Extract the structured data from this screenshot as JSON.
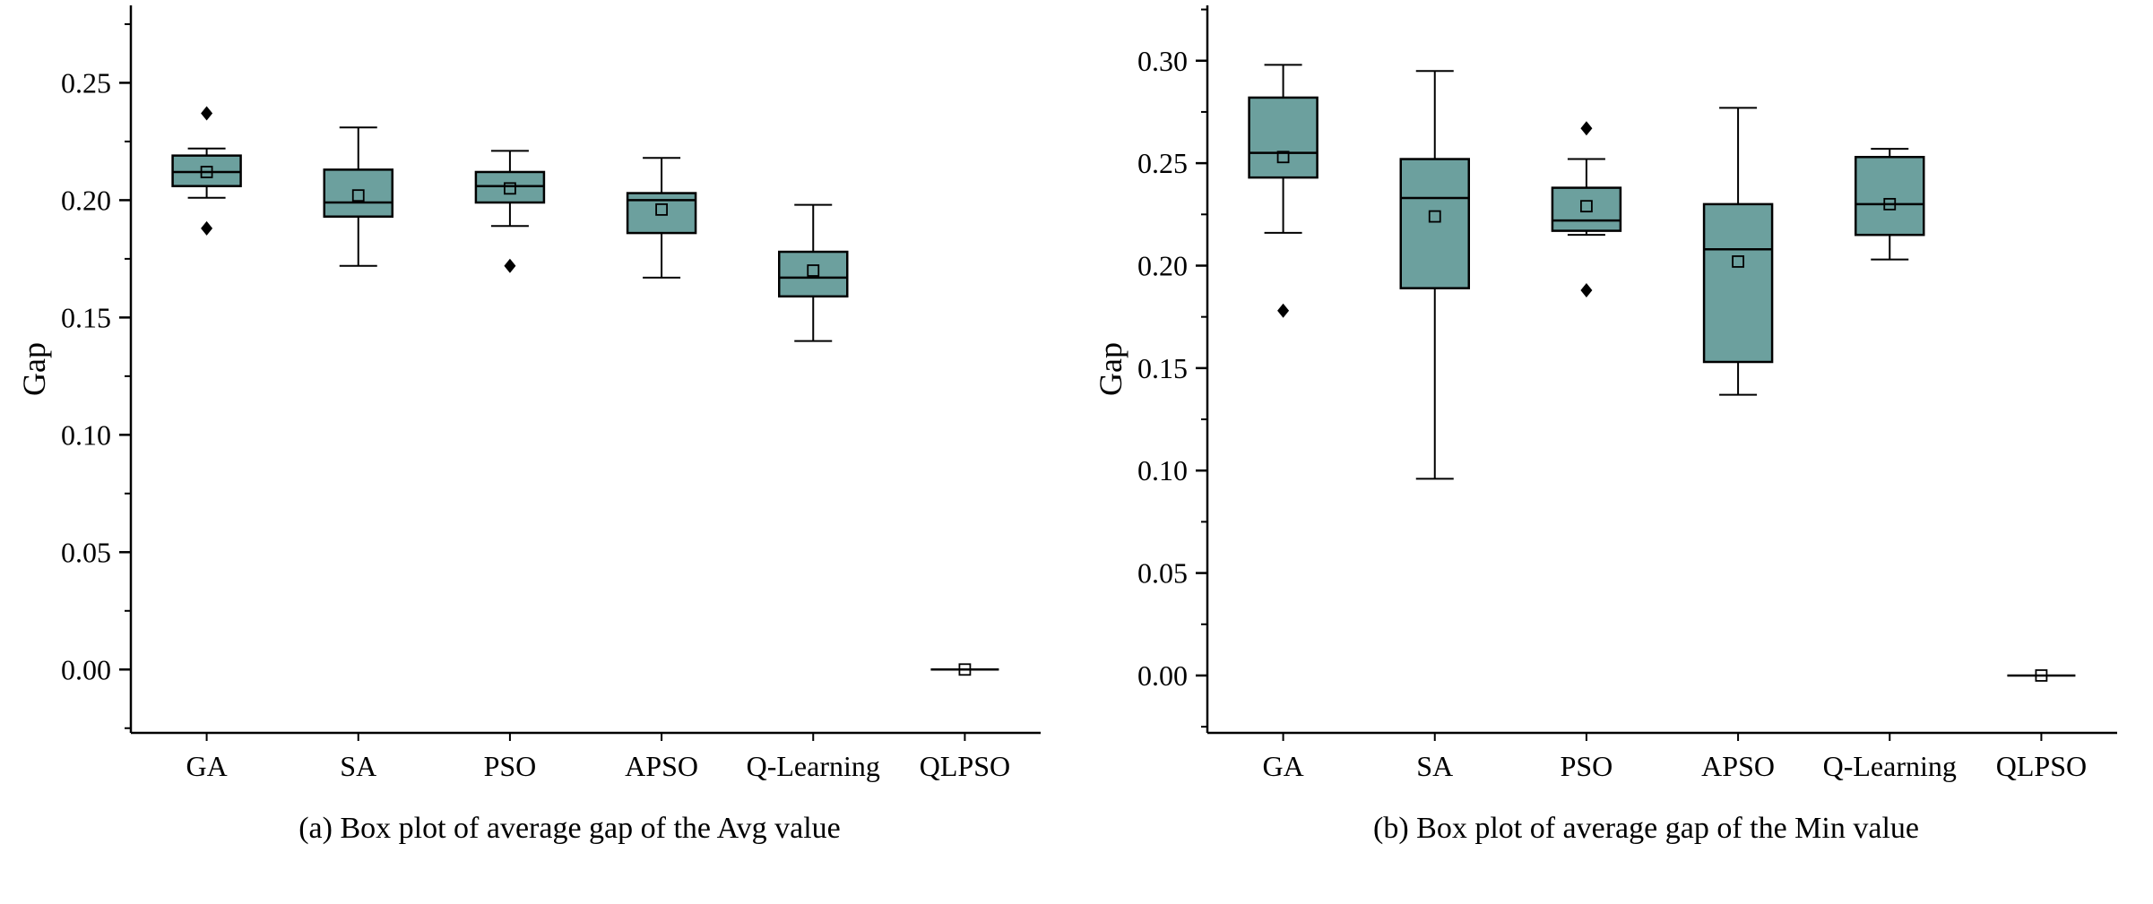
{
  "colors": {
    "box_fill": "#6CA09E",
    "stroke": "#000000",
    "background": "#ffffff"
  },
  "chart_data": [
    {
      "type": "box",
      "title": "(a) Box plot of average gap of the Avg value",
      "ylabel": "Gap",
      "ylim": [
        -0.027,
        0.283
      ],
      "yticks": [
        0.0,
        0.05,
        0.1,
        0.15,
        0.2,
        0.25
      ],
      "minor_tick_step": 0.025,
      "categories": [
        "GA",
        "SA",
        "PSO",
        "APSO",
        "Q-Learning",
        "QLPSO"
      ],
      "boxes": [
        {
          "category": "GA",
          "whisker_low": 0.201,
          "q1": 0.206,
          "median": 0.212,
          "q3": 0.219,
          "whisker_high": 0.222,
          "mean": 0.212,
          "outliers": [
            0.237,
            0.188
          ]
        },
        {
          "category": "SA",
          "whisker_low": 0.172,
          "q1": 0.193,
          "median": 0.199,
          "q3": 0.213,
          "whisker_high": 0.231,
          "mean": 0.202,
          "outliers": []
        },
        {
          "category": "PSO",
          "whisker_low": 0.189,
          "q1": 0.199,
          "median": 0.206,
          "q3": 0.212,
          "whisker_high": 0.221,
          "mean": 0.205,
          "outliers": [
            0.172
          ]
        },
        {
          "category": "APSO",
          "whisker_low": 0.167,
          "q1": 0.186,
          "median": 0.2,
          "q3": 0.203,
          "whisker_high": 0.218,
          "mean": 0.196,
          "outliers": []
        },
        {
          "category": "Q-Learning",
          "whisker_low": 0.14,
          "q1": 0.159,
          "median": 0.167,
          "q3": 0.178,
          "whisker_high": 0.198,
          "mean": 0.17,
          "outliers": []
        },
        {
          "category": "QLPSO",
          "whisker_low": 0.0,
          "q1": 0.0,
          "median": 0.0,
          "q3": 0.0,
          "whisker_high": 0.0,
          "mean": 0.0,
          "outliers": []
        }
      ]
    },
    {
      "type": "box",
      "title": "(b) Box plot of average gap of the Min value",
      "ylabel": "Gap",
      "ylim": [
        -0.028,
        0.327
      ],
      "yticks": [
        0.0,
        0.05,
        0.1,
        0.15,
        0.2,
        0.25,
        0.3
      ],
      "minor_tick_step": 0.025,
      "categories": [
        "GA",
        "SA",
        "PSO",
        "APSO",
        "Q-Learning",
        "QLPSO"
      ],
      "boxes": [
        {
          "category": "GA",
          "whisker_low": 0.216,
          "q1": 0.243,
          "median": 0.255,
          "q3": 0.282,
          "whisker_high": 0.298,
          "mean": 0.253,
          "outliers": [
            0.178
          ]
        },
        {
          "category": "SA",
          "whisker_low": 0.096,
          "q1": 0.189,
          "median": 0.233,
          "q3": 0.252,
          "whisker_high": 0.295,
          "mean": 0.224,
          "outliers": []
        },
        {
          "category": "PSO",
          "whisker_low": 0.215,
          "q1": 0.217,
          "median": 0.222,
          "q3": 0.238,
          "whisker_high": 0.252,
          "mean": 0.229,
          "outliers": [
            0.267,
            0.188
          ]
        },
        {
          "category": "APSO",
          "whisker_low": 0.137,
          "q1": 0.153,
          "median": 0.208,
          "q3": 0.23,
          "whisker_high": 0.277,
          "mean": 0.202,
          "outliers": []
        },
        {
          "category": "Q-Learning",
          "whisker_low": 0.203,
          "q1": 0.215,
          "median": 0.23,
          "q3": 0.253,
          "whisker_high": 0.257,
          "mean": 0.23,
          "outliers": []
        },
        {
          "category": "QLPSO",
          "whisker_low": 0.0,
          "q1": 0.0,
          "median": 0.0,
          "q3": 0.0,
          "whisker_high": 0.0,
          "mean": 0.0,
          "outliers": []
        }
      ]
    }
  ]
}
